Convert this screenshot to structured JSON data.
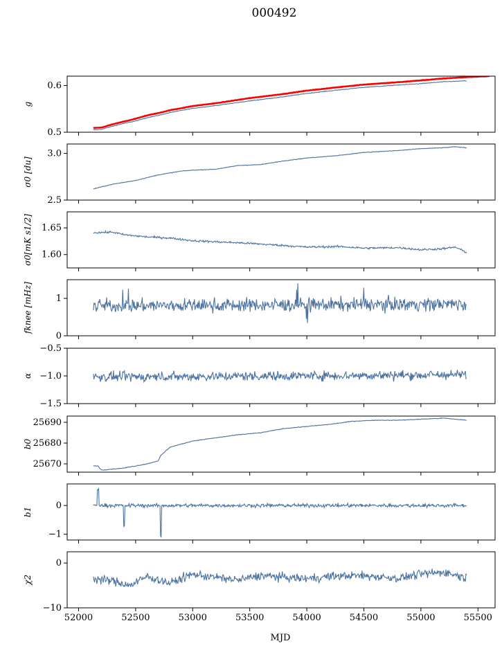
{
  "title": "000492",
  "xlabel": "MJD",
  "series_color": "#4c72a0",
  "fit_color": "#ff0000",
  "x_range": [
    51900,
    55650
  ],
  "x_ticks": [
    52000,
    52500,
    53000,
    53500,
    54000,
    54500,
    55000,
    55500
  ],
  "x_tick_labels": [
    "52000",
    "52500",
    "53000",
    "53500",
    "54000",
    "54500",
    "55000",
    "55500"
  ],
  "chart_data": [
    {
      "type": "line",
      "ylabel": "g",
      "ylim": [
        0.5,
        0.62
      ],
      "yticks": [
        0.5,
        0.6
      ],
      "ytick_labels": [
        "0.5",
        "0.6"
      ],
      "series": [
        {
          "values_x": [
            52130,
            52200,
            52300,
            52400,
            52500,
            52600,
            52700,
            52800,
            53000,
            53200,
            53500,
            53800,
            54000,
            54300,
            54500,
            54800,
            55000,
            55200,
            55400
          ],
          "values_y": [
            0.505,
            0.506,
            0.513,
            0.519,
            0.524,
            0.531,
            0.536,
            0.542,
            0.551,
            0.557,
            0.567,
            0.576,
            0.583,
            0.591,
            0.596,
            0.601,
            0.604,
            0.608,
            0.61
          ]
        },
        {
          "values_x": [
            52130,
            52200,
            52300,
            52400,
            52500,
            52600,
            52700,
            52800,
            53000,
            53200,
            53500,
            53800,
            54000,
            54300,
            54500,
            54800,
            55000,
            55200,
            55400,
            55600
          ],
          "values_y": [
            0.509,
            0.51,
            0.517,
            0.523,
            0.529,
            0.536,
            0.541,
            0.547,
            0.556,
            0.562,
            0.573,
            0.582,
            0.589,
            0.597,
            0.602,
            0.607,
            0.611,
            0.615,
            0.618,
            0.62
          ]
        }
      ]
    },
    {
      "type": "line",
      "ylabel": "σ0 [du]",
      "ylim": [
        2.5,
        3.1
      ],
      "yticks": [
        2.5,
        3.0
      ],
      "ytick_labels": [
        "2.5",
        "3.0"
      ],
      "series": [
        {
          "values_x": [
            52130,
            52300,
            52500,
            52700,
            52900,
            53000,
            53200,
            53400,
            53600,
            53800,
            54000,
            54300,
            54500,
            54800,
            55000,
            55200,
            55300,
            55400
          ],
          "values_y": [
            2.62,
            2.67,
            2.71,
            2.77,
            2.81,
            2.82,
            2.83,
            2.87,
            2.88,
            2.92,
            2.95,
            2.98,
            3.01,
            3.03,
            3.05,
            3.06,
            3.07,
            3.06
          ]
        }
      ]
    },
    {
      "type": "line",
      "ylabel": "σ0[mK s1/2]",
      "ylim": [
        1.575,
        1.68
      ],
      "yticks": [
        1.6,
        1.65
      ],
      "ytick_labels": [
        "1.60",
        "1.65"
      ],
      "series": [
        {
          "values_x": [
            52130,
            52300,
            52400,
            52600,
            52800,
            53000,
            53200,
            53500,
            53800,
            54000,
            54300,
            54500,
            54800,
            55000,
            55200,
            55300,
            55400
          ],
          "values_y": [
            1.641,
            1.642,
            1.637,
            1.633,
            1.631,
            1.626,
            1.624,
            1.621,
            1.617,
            1.614,
            1.615,
            1.612,
            1.613,
            1.609,
            1.611,
            1.614,
            1.604
          ]
        }
      ]
    },
    {
      "type": "line",
      "ylabel": "fknee [mHz]",
      "ylim": [
        0,
        1.5
      ],
      "yticks": [
        0,
        1
      ],
      "ytick_labels": [
        "0",
        "1"
      ],
      "series": [
        {
          "values_x": [
            52130,
            55400
          ],
          "values_y": [
            0.8,
            0.85
          ]
        }
      ]
    },
    {
      "type": "line",
      "ylabel": "α",
      "ylim": [
        -1.5,
        -0.5
      ],
      "yticks": [
        -1.5,
        -1.0,
        -0.5
      ],
      "ytick_labels": [
        "−1.5",
        "−1.0",
        "−0.5"
      ],
      "series": [
        {
          "values_x": [
            52130,
            55400
          ],
          "values_y": [
            -1.02,
            -0.98
          ]
        }
      ]
    },
    {
      "type": "line",
      "ylabel": "b0",
      "ylim": [
        25666,
        25693
      ],
      "yticks": [
        25670,
        25680,
        25690
      ],
      "ytick_labels": [
        "25670",
        "25680",
        "25690"
      ],
      "series": [
        {
          "values_x": [
            52130,
            52170,
            52200,
            52300,
            52400,
            52500,
            52600,
            52700,
            52720,
            52760,
            52800,
            53000,
            53200,
            53400,
            53600,
            53800,
            54000,
            54200,
            54400,
            54600,
            54800,
            55000,
            55200,
            55300,
            55400
          ],
          "values_y": [
            25669,
            25669,
            25667,
            25667.5,
            25668,
            25669,
            25670,
            25671.5,
            25674,
            25676,
            25678,
            25681,
            25682.5,
            25684,
            25685,
            25687,
            25688,
            25689,
            25690.5,
            25691,
            25691,
            25691.5,
            25692,
            25691.5,
            25691
          ]
        }
      ]
    },
    {
      "type": "line",
      "ylabel": "b1",
      "ylim": [
        -1.2,
        0.75
      ],
      "yticks": [
        -1,
        0
      ],
      "ytick_labels": [
        "−1",
        "0"
      ],
      "series": [
        {
          "values_x": [
            52130,
            55400
          ],
          "values_y": [
            0.0,
            0.0
          ]
        }
      ]
    },
    {
      "type": "line",
      "ylabel": "χ2",
      "ylim": [
        -10,
        2.5
      ],
      "yticks": [
        -10,
        0
      ],
      "ytick_labels": [
        "−10",
        "0"
      ],
      "series": [
        {
          "values_x": [
            52130,
            52300,
            52450,
            52600,
            52800,
            53000,
            53200,
            53400,
            53600,
            53800,
            54000,
            54200,
            54400,
            54600,
            54800,
            55000,
            55200,
            55400
          ],
          "values_y": [
            -3.5,
            -4.0,
            -5.0,
            -3.0,
            -4.5,
            -2.5,
            -3.2,
            -3.8,
            -2.8,
            -3.2,
            -3.5,
            -3.0,
            -2.8,
            -3.0,
            -3.4,
            -2.5,
            -2.0,
            -3.3
          ]
        }
      ]
    }
  ]
}
